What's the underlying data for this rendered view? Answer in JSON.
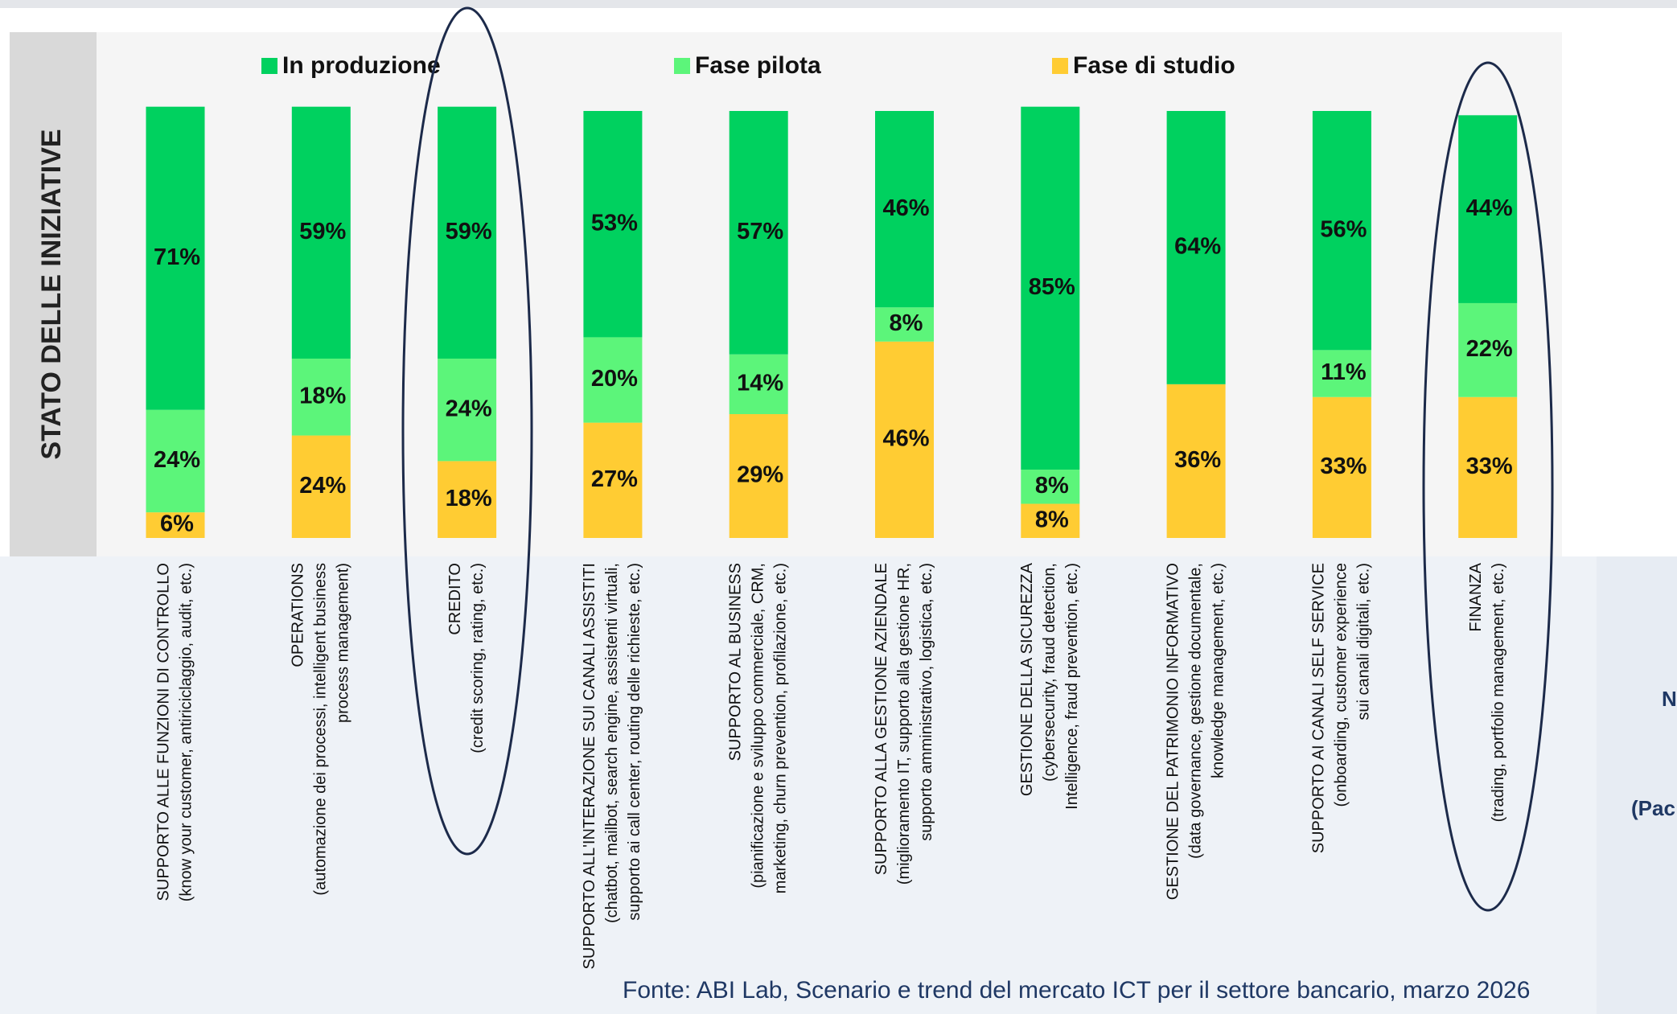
{
  "chart_data": {
    "type": "stacked_bar",
    "ylabel": "STATO DELLE INIZIATIVE",
    "source": "Fonte: ABI Lab, Scenario e trend del mercato ICT per il settore bancario, marzo 2026",
    "side_text": [
      "N",
      "(Pac"
    ],
    "categories": [
      [
        "SUPPORTO ALLE FUNZIONI DI CONTROLLO",
        "(know your customer, antiriciclaggio, audit, etc.)"
      ],
      [
        "OPERATIONS",
        "(automazione dei processi, intelligent business",
        "process management)"
      ],
      [
        "CREDITO",
        "(credit scoring, rating, etc.)"
      ],
      [
        "SUPPORTO ALL'INTERAZIONE SUI CANALI ASSISTITI",
        "(chatbot, mailbot, search engine, assistenti virtuali,",
        "supporto ai call center, routing delle richieste, etc.)"
      ],
      [
        "SUPPORTO AL BUSINESS",
        "(pianificazione e sviluppo commerciale, CRM,",
        "marketing, churn prevention, profilazione, etc.)"
      ],
      [
        "SUPPORTO ALLA GESTIONE AZIENDALE",
        "(miglioramento IT, supporto alla gestione HR,",
        "supporto amministrativo, logistica, etc.)"
      ],
      [
        "GESTIONE DELLA SICUREZZA",
        "(cybersecurity, fraud detection,",
        "Intelligence, fraud prevention, etc.)"
      ],
      [
        "GESTIONE DEL PATRIMONIO INFORMATIVO",
        "(data governance, gestione documentale,",
        "knowledge management, etc.)"
      ],
      [
        "SUPPORTO AI CANALI SELF SERVICE",
        "(onboarding, customer experience",
        "sui canali digitali, etc.)"
      ],
      [
        "FINANZA",
        "(trading, portfolio management, etc.)"
      ]
    ],
    "series": [
      {
        "name": "In produzione",
        "color": "#00d15f",
        "values": [
          71,
          59,
          59,
          53,
          57,
          46,
          85,
          64,
          56,
          44
        ],
        "value_labels": [
          "71%",
          "59%",
          "59%",
          "53%",
          "57%",
          "46%",
          "85%",
          "64%",
          "56%",
          "44%"
        ]
      },
      {
        "name": "Fase pilota",
        "color": "#5cf57a",
        "values": [
          24,
          18,
          24,
          20,
          14,
          8,
          8,
          null,
          11,
          22
        ],
        "value_labels": [
          "24%",
          "18%",
          "24%",
          "20%",
          "14%",
          "8%",
          "8%",
          null,
          "11%",
          "22%"
        ]
      },
      {
        "name": "Fase di studio",
        "color": "#ffcc33",
        "values": [
          6,
          24,
          18,
          27,
          29,
          46,
          8,
          36,
          33,
          33
        ],
        "value_labels": [
          "6%",
          "24%",
          "18%",
          "27%",
          "29%",
          "46%",
          "8%",
          "36%",
          "33%",
          "33%"
        ]
      }
    ],
    "ylim": [
      0,
      100
    ]
  }
}
